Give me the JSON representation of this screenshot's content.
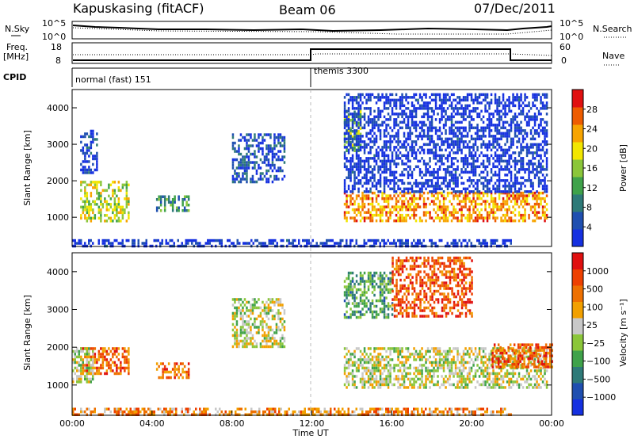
{
  "header": {
    "station": "Kapuskasing (fitACF)",
    "beam": "Beam 06",
    "date": "07/Dec/2011"
  },
  "sky_panel": {
    "left_label": "N.Sky",
    "right_label": "N.Search",
    "left_ticks": [
      "10^5",
      "10^0"
    ],
    "right_ticks": [
      "10^5",
      "10^0"
    ]
  },
  "freq_panel": {
    "left_label_1": "Freq.",
    "left_label_2": "[MHz]",
    "right_label": "Nave",
    "left_ticks": [
      "18",
      "8"
    ],
    "right_ticks": [
      "60",
      "0"
    ]
  },
  "cpid_panel": {
    "label": "CPID",
    "modes": [
      {
        "name": "normal (fast) 151",
        "start_hour": 0,
        "end_hour": 12
      },
      {
        "name": "themis 3300",
        "start_hour": 12,
        "end_hour": 24
      }
    ]
  },
  "time_axis": {
    "label": "Time UT",
    "ticks": [
      "00:00",
      "04:00",
      "08:00",
      "12:00",
      "16:00",
      "20:00",
      "00:00"
    ]
  },
  "chart_data": [
    {
      "type": "heatmap",
      "name": "power",
      "ylabel": "Slant Range [km]",
      "y_ticks": [
        1000,
        2000,
        3000,
        4000
      ],
      "ylim": [
        200,
        4500
      ],
      "xlim_hours": [
        0,
        24
      ],
      "colorbar_label": "Power [dB]",
      "colorbar_ticks": [
        "28",
        "24",
        "20",
        "16",
        "12",
        "8",
        "4"
      ],
      "colors": [
        "#1530e0",
        "#1f4fb0",
        "#2e7a78",
        "#3fa24a",
        "#8bc63a",
        "#f2e600",
        "#f7a400",
        "#ee5c00",
        "#e01010"
      ],
      "echo_regions": [
        {
          "t0": 0.4,
          "t1": 2.8,
          "r0": 900,
          "r1": 2000,
          "level": 0.55
        },
        {
          "t0": 0.4,
          "t1": 1.2,
          "r0": 2200,
          "r1": 3400,
          "level": 0.1
        },
        {
          "t0": 4.2,
          "t1": 5.8,
          "r0": 1200,
          "r1": 1600,
          "level": 0.35
        },
        {
          "t0": 8.0,
          "t1": 10.6,
          "r0": 2000,
          "r1": 3300,
          "level": 0.15
        },
        {
          "t0": 13.6,
          "t1": 23.8,
          "r0": 900,
          "r1": 1700,
          "level": 0.75
        },
        {
          "t0": 13.6,
          "t1": 14.4,
          "r0": 2800,
          "r1": 4000,
          "level": 0.45
        },
        {
          "t0": 13.6,
          "t1": 23.8,
          "r0": 1700,
          "r1": 4400,
          "level": 0.05
        },
        {
          "t0": 0.0,
          "t1": 22.0,
          "r0": 200,
          "r1": 400,
          "level": 0.05
        }
      ]
    },
    {
      "type": "heatmap",
      "name": "velocity",
      "ylabel": "Slant Range [km]",
      "y_ticks": [
        1000,
        2000,
        3000,
        4000
      ],
      "ylim": [
        200,
        4500
      ],
      "xlim_hours": [
        0,
        24
      ],
      "colorbar_label": "Velocity [m s⁻¹]",
      "colorbar_ticks": [
        "1000",
        "500",
        "100",
        "25",
        "−25",
        "−100",
        "−500",
        "−1000"
      ],
      "colors": [
        "#1530e0",
        "#1f4fb0",
        "#2e7a78",
        "#3fa24a",
        "#8bc63a",
        "#c8c8c8",
        "#f2a000",
        "#ee7000",
        "#ee4000",
        "#e01010"
      ],
      "echo_regions": [
        {
          "t0": 0.4,
          "t1": 2.8,
          "r0": 1300,
          "r1": 2000,
          "level": 0.78
        },
        {
          "t0": 0.0,
          "t1": 1.0,
          "r0": 1100,
          "r1": 2000,
          "level": 0.52
        },
        {
          "t0": 4.2,
          "t1": 5.8,
          "r0": 1200,
          "r1": 1600,
          "level": 0.78
        },
        {
          "t0": 8.0,
          "t1": 10.6,
          "r0": 2000,
          "r1": 3300,
          "level": 0.52
        },
        {
          "t0": 13.6,
          "t1": 23.8,
          "r0": 900,
          "r1": 2000,
          "level": 0.52
        },
        {
          "t0": 13.6,
          "t1": 16.0,
          "r0": 2800,
          "r1": 4000,
          "level": 0.35
        },
        {
          "t0": 16.0,
          "t1": 20.0,
          "r0": 2800,
          "r1": 4400,
          "level": 0.82
        },
        {
          "t0": 21.0,
          "t1": 24.0,
          "r0": 1500,
          "r1": 2100,
          "level": 0.82
        },
        {
          "t0": 0.0,
          "t1": 22.0,
          "r0": 200,
          "r1": 400,
          "level": 0.7
        }
      ]
    }
  ]
}
